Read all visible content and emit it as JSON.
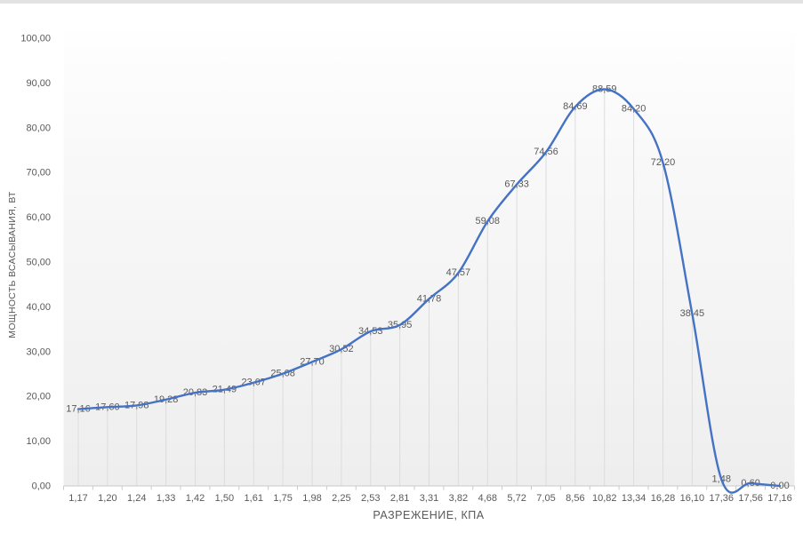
{
  "chart_data": {
    "type": "line",
    "title": "",
    "xlabel": "РАЗРЕЖЕНИЕ, КПА",
    "ylabel": "МОЩНОСТЬ ВСАСЫВАНИЯ, ВТ",
    "categories": [
      "1,17",
      "1,20",
      "1,24",
      "1,33",
      "1,42",
      "1,50",
      "1,61",
      "1,75",
      "1,98",
      "2,25",
      "2,53",
      "2,81",
      "3,31",
      "3,82",
      "4,68",
      "5,72",
      "7,05",
      "8,56",
      "10,82",
      "13,34",
      "16,28",
      "16,10",
      "17,36",
      "17,56",
      "17,16"
    ],
    "values": [
      17.16,
      17.6,
      17.98,
      19.28,
      20.83,
      21.49,
      23.07,
      25.08,
      27.7,
      30.52,
      34.53,
      35.95,
      41.78,
      47.57,
      59.08,
      67.33,
      74.56,
      84.69,
      88.59,
      84.2,
      72.2,
      38.45,
      1.48,
      0.6,
      0.0
    ],
    "point_labels": [
      "17,16",
      "17,60",
      "17,98",
      "19,28",
      "20,83",
      "21,49",
      "23,07",
      "25,08",
      "27,70",
      "30,52",
      "34,53",
      "35,95",
      "41,78",
      "47,57",
      "59,08",
      "67,33",
      "74,56",
      "84,69",
      "88,59",
      "84,20",
      "72,20",
      "38,45",
      "1,48",
      "0,60",
      "0,00"
    ],
    "y_ticks": [
      "0,00",
      "10,00",
      "20,00",
      "30,00",
      "40,00",
      "50,00",
      "60,00",
      "70,00",
      "80,00",
      "90,00",
      "100,00"
    ],
    "ylim": [
      0,
      100
    ],
    "legend": "none",
    "grid": "vertical drop lines from points to x-axis, no horizontal gridlines",
    "colors": {
      "line": "#4472C4",
      "tick_label": "#595959",
      "data_label": "#595959",
      "axis_title": "#595959",
      "drop_line": "#dcdcdc",
      "axis_line": "#c9c9c9",
      "plot_bg_top": "#fefefe",
      "plot_bg_bottom": "#eeeeee"
    }
  }
}
